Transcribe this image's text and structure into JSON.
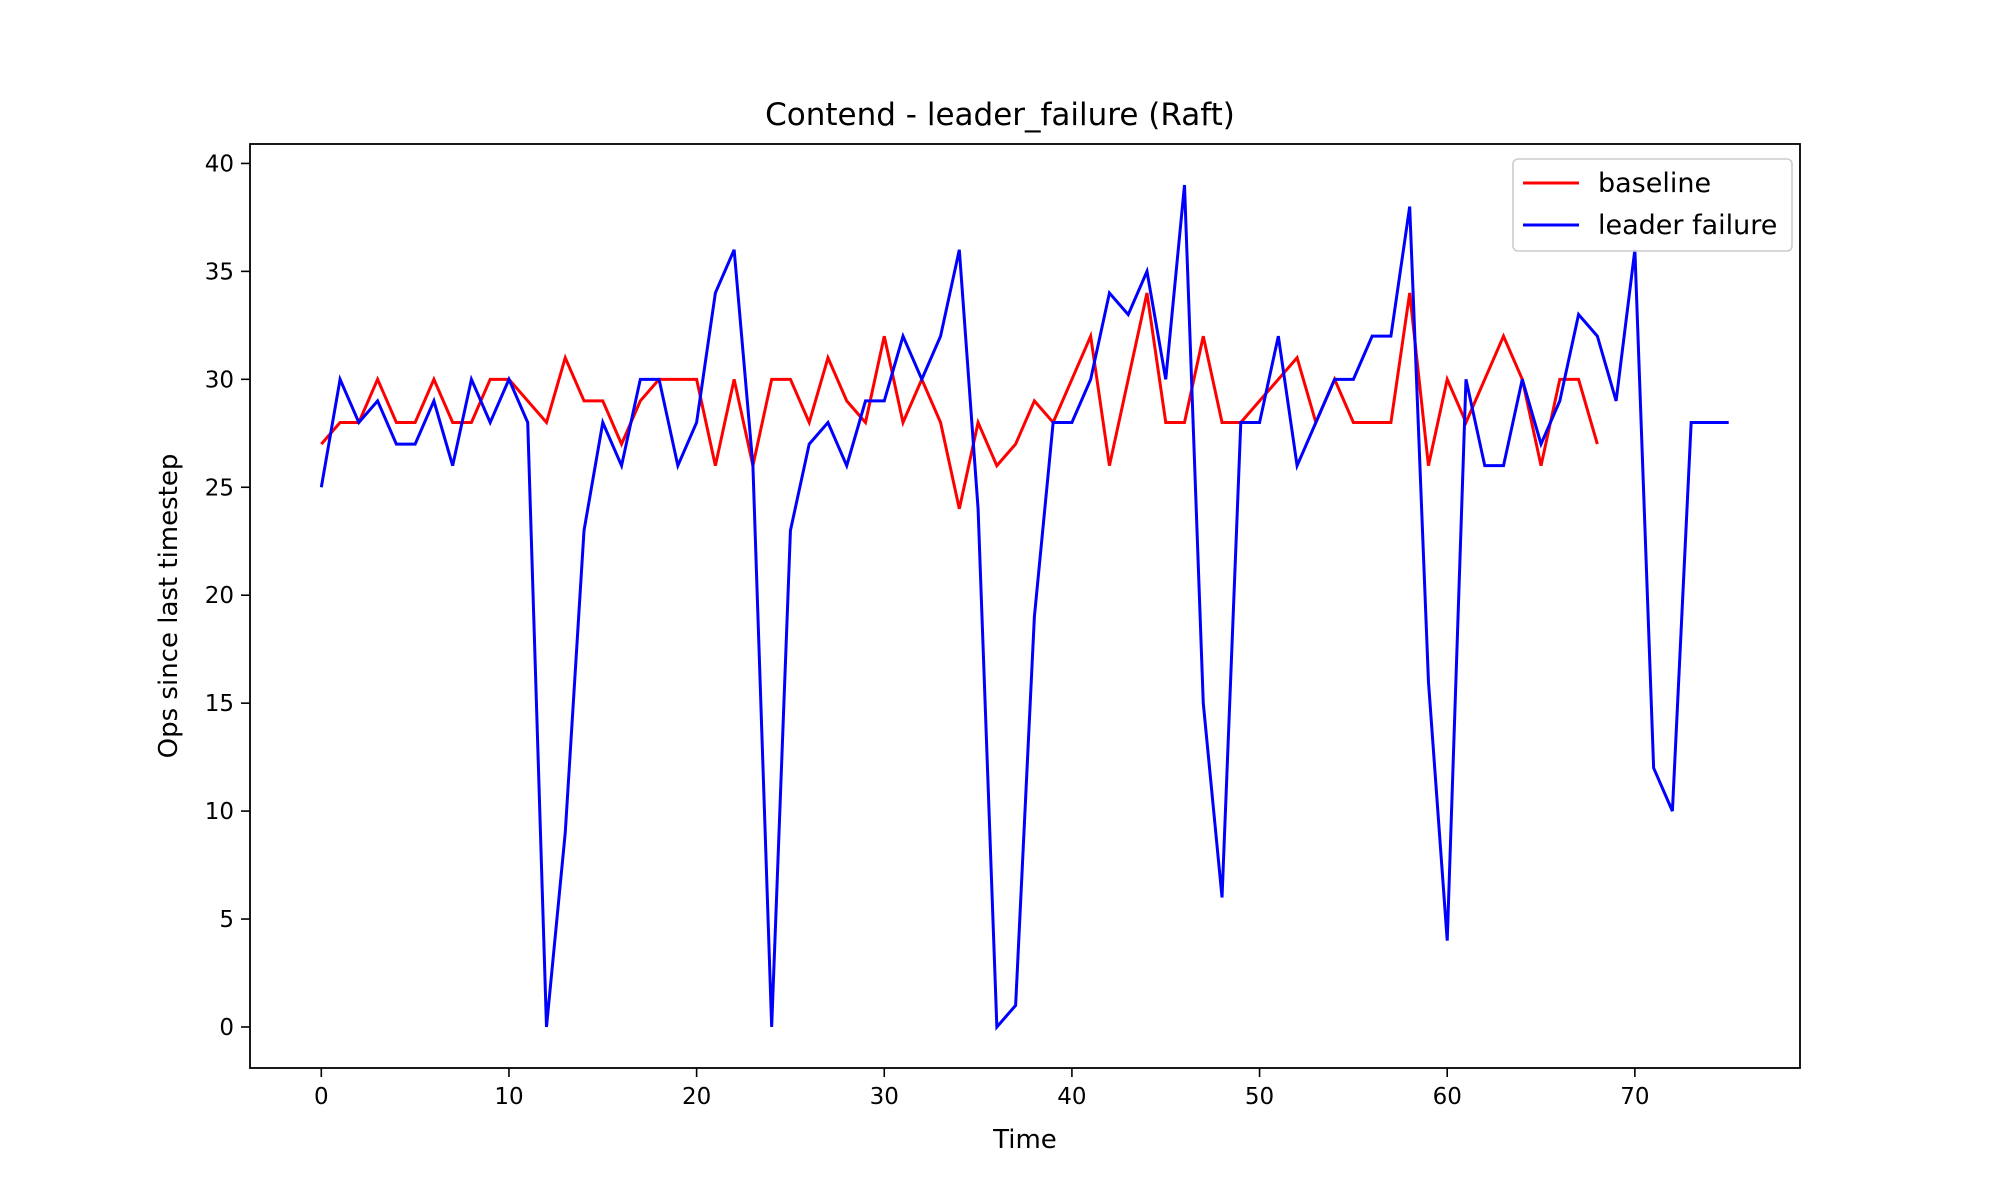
{
  "chart_data": {
    "type": "line",
    "title": "Contend - leader_failure (Raft)",
    "xlabel": "Time",
    "ylabel": "Ops since last timestep",
    "xlim": [
      -3.8,
      78.8
    ],
    "ylim": [
      -1.9,
      40.9
    ],
    "xticks": [
      0,
      10,
      20,
      30,
      40,
      50,
      60,
      70
    ],
    "yticks": [
      0,
      5,
      10,
      15,
      20,
      25,
      30,
      35,
      40
    ],
    "grid": false,
    "legend_position": "top-right",
    "series": [
      {
        "name": "baseline",
        "color": "#ff0000",
        "values": [
          27,
          28,
          28,
          30,
          28,
          28,
          30,
          28,
          28,
          30,
          30,
          29,
          28,
          31,
          29,
          29,
          27,
          29,
          30,
          30,
          30,
          26,
          30,
          26,
          30,
          30,
          28,
          31,
          29,
          28,
          32,
          28,
          30,
          28,
          24,
          28,
          26,
          27,
          29,
          28,
          30,
          32,
          26,
          30,
          34,
          28,
          28,
          32,
          28,
          28,
          29,
          30,
          31,
          28,
          30,
          28,
          28,
          28,
          34,
          26,
          30,
          28,
          30,
          32,
          30,
          26,
          30,
          30,
          27
        ]
      },
      {
        "name": "leader failure",
        "color": "#0000ff",
        "values": [
          25,
          30,
          28,
          29,
          27,
          27,
          29,
          26,
          30,
          28,
          30,
          28,
          0,
          9,
          23,
          28,
          26,
          30,
          30,
          26,
          28,
          34,
          36,
          26,
          0,
          23,
          27,
          28,
          26,
          29,
          29,
          32,
          30,
          32,
          36,
          24,
          0,
          1,
          19,
          28,
          28,
          30,
          34,
          33,
          35,
          30,
          39,
          15,
          6,
          28,
          28,
          32,
          26,
          28,
          30,
          30,
          32,
          32,
          38,
          16,
          4,
          30,
          26,
          26,
          30,
          27,
          29,
          33,
          32,
          29,
          36,
          12,
          10,
          28,
          28,
          28
        ]
      }
    ]
  }
}
